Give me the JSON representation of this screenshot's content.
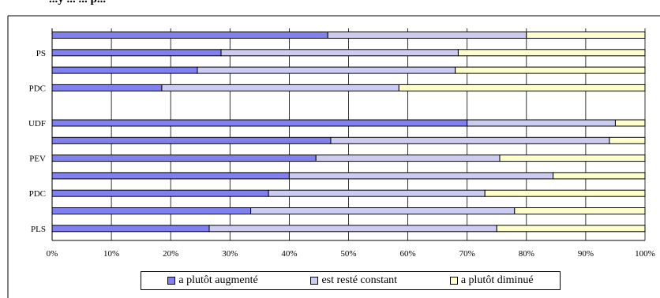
{
  "chart_data": {
    "type": "bar",
    "orientation": "horizontal",
    "stacked": true,
    "title": "...y ... ... p...",
    "categories": [
      "",
      "PS",
      "",
      "PDC",
      "",
      "UDF",
      "",
      "PEV",
      "",
      "PDC",
      "",
      "PLS"
    ],
    "gap_indices": [
      4
    ],
    "series": [
      {
        "name": "a plutôt augmenté",
        "color": "#8080f0",
        "values": [
          46.5,
          28.5,
          24.5,
          18.5,
          null,
          70,
          47,
          44.5,
          40,
          36.5,
          33.5,
          26.5
        ]
      },
      {
        "name": "est resté constant",
        "color": "#ccccf2",
        "values": [
          33.5,
          40,
          43.5,
          40,
          null,
          25,
          47,
          31,
          44.5,
          36.5,
          44.5,
          48.5
        ]
      },
      {
        "name": "a plutôt diminué",
        "color": "#ffffcc",
        "values": [
          20,
          31.5,
          32,
          41.5,
          null,
          5,
          6,
          24.5,
          15.5,
          27,
          22,
          25
        ]
      }
    ],
    "xlim": [
      0,
      100
    ],
    "x_ticks": [
      "0%",
      "10%",
      "20%",
      "30%",
      "40%",
      "50%",
      "60%",
      "70%",
      "80%",
      "90%",
      "100%"
    ],
    "grid": "vertical",
    "legend_position": "bottom"
  }
}
